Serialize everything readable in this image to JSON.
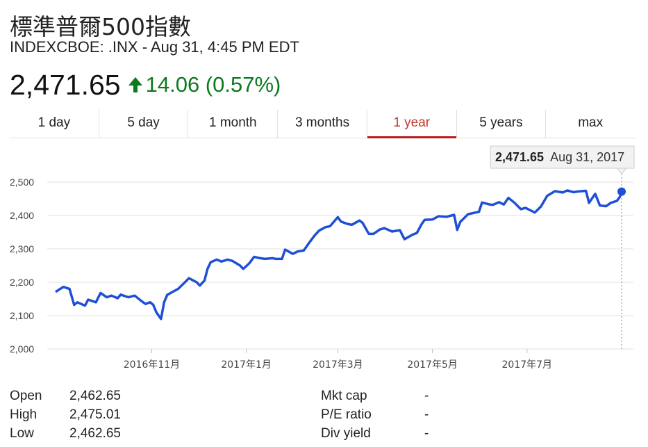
{
  "header": {
    "title": "標準普爾500指數",
    "subtitle": "INDEXCBOE: .INX - Aug 31, 4:45 PM EDT",
    "price": "2,471.65",
    "change": "14.06 (0.57%)"
  },
  "tabs": [
    {
      "label": "1 day",
      "active": false
    },
    {
      "label": "5 day",
      "active": false
    },
    {
      "label": "1 month",
      "active": false
    },
    {
      "label": "3 months",
      "active": false
    },
    {
      "label": "1 year",
      "active": true
    },
    {
      "label": "5 years",
      "active": false
    },
    {
      "label": "max",
      "active": false
    }
  ],
  "tooltip": {
    "value": "2,471.65",
    "date": "Aug 31, 2017"
  },
  "stats_left": [
    {
      "label": "Open",
      "value": "2,462.65"
    },
    {
      "label": "High",
      "value": "2,475.01"
    },
    {
      "label": "Low",
      "value": "2,462.65"
    }
  ],
  "stats_right": [
    {
      "label": "Mkt cap",
      "value": "-"
    },
    {
      "label": "P/E ratio",
      "value": "-"
    },
    {
      "label": "Div yield",
      "value": "-"
    }
  ],
  "colors": {
    "line": "#1f4fd6",
    "up": "#0b7a1f",
    "active_tab": "#b71c1c"
  },
  "chart_data": {
    "type": "line",
    "ylim": [
      2000,
      2500
    ],
    "yticks": [
      "2,000",
      "2,100",
      "2,200",
      "2,300",
      "2,400",
      "2,500"
    ],
    "ytick_values": [
      2000,
      2100,
      2200,
      2300,
      2400,
      2500
    ],
    "xlim": [
      "2016-08-31",
      "2017-08-31"
    ],
    "xticks": [
      {
        "label": "2016年11月",
        "date": "2016-11-01"
      },
      {
        "label": "2017年1月",
        "date": "2017-01-01"
      },
      {
        "label": "2017年3月",
        "date": "2017-03-01"
      },
      {
        "label": "2017年5月",
        "date": "2017-05-01"
      },
      {
        "label": "2017年7月",
        "date": "2017-07-01"
      }
    ],
    "grid": true,
    "series": [
      {
        "values": [
          [
            "2016-08-31",
            2171
          ],
          [
            "2016-09-05",
            2186
          ],
          [
            "2016-09-09",
            2180
          ],
          [
            "2016-09-12",
            2132
          ],
          [
            "2016-09-14",
            2140
          ],
          [
            "2016-09-19",
            2130
          ],
          [
            "2016-09-21",
            2148
          ],
          [
            "2016-09-26",
            2140
          ],
          [
            "2016-09-29",
            2168
          ],
          [
            "2016-10-03",
            2155
          ],
          [
            "2016-10-06",
            2160
          ],
          [
            "2016-10-10",
            2152
          ],
          [
            "2016-10-12",
            2163
          ],
          [
            "2016-10-17",
            2155
          ],
          [
            "2016-10-21",
            2160
          ],
          [
            "2016-10-25",
            2145
          ],
          [
            "2016-10-28",
            2135
          ],
          [
            "2016-10-31",
            2140
          ],
          [
            "2016-11-02",
            2132
          ],
          [
            "2016-11-04",
            2110
          ],
          [
            "2016-11-07",
            2090
          ],
          [
            "2016-11-09",
            2140
          ],
          [
            "2016-11-11",
            2162
          ],
          [
            "2016-11-14",
            2170
          ],
          [
            "2016-11-18",
            2180
          ],
          [
            "2016-11-22",
            2198
          ],
          [
            "2016-11-25",
            2212
          ],
          [
            "2016-11-30",
            2200
          ],
          [
            "2016-12-02",
            2190
          ],
          [
            "2016-12-05",
            2205
          ],
          [
            "2016-12-07",
            2240
          ],
          [
            "2016-12-09",
            2260
          ],
          [
            "2016-12-13",
            2268
          ],
          [
            "2016-12-16",
            2262
          ],
          [
            "2016-12-20",
            2268
          ],
          [
            "2016-12-23",
            2264
          ],
          [
            "2016-12-28",
            2250
          ],
          [
            "2016-12-30",
            2240
          ],
          [
            "2017-01-03",
            2257
          ],
          [
            "2017-01-06",
            2276
          ],
          [
            "2017-01-10",
            2272
          ],
          [
            "2017-01-13",
            2270
          ],
          [
            "2017-01-18",
            2272
          ],
          [
            "2017-01-20",
            2270
          ],
          [
            "2017-01-24",
            2270
          ],
          [
            "2017-01-26",
            2298
          ],
          [
            "2017-01-31",
            2285
          ],
          [
            "2017-02-03",
            2292
          ],
          [
            "2017-02-07",
            2295
          ],
          [
            "2017-02-10",
            2315
          ],
          [
            "2017-02-14",
            2340
          ],
          [
            "2017-02-17",
            2355
          ],
          [
            "2017-02-21",
            2365
          ],
          [
            "2017-02-24",
            2368
          ],
          [
            "2017-03-01",
            2395
          ],
          [
            "2017-03-03",
            2382
          ],
          [
            "2017-03-07",
            2375
          ],
          [
            "2017-03-10",
            2372
          ],
          [
            "2017-03-15",
            2385
          ],
          [
            "2017-03-17",
            2378
          ],
          [
            "2017-03-21",
            2345
          ],
          [
            "2017-03-24",
            2345
          ],
          [
            "2017-03-28",
            2358
          ],
          [
            "2017-03-31",
            2362
          ],
          [
            "2017-04-05",
            2352
          ],
          [
            "2017-04-10",
            2356
          ],
          [
            "2017-04-13",
            2329
          ],
          [
            "2017-04-18",
            2342
          ],
          [
            "2017-04-21",
            2348
          ],
          [
            "2017-04-24",
            2374
          ],
          [
            "2017-04-26",
            2387
          ],
          [
            "2017-05-01",
            2388
          ],
          [
            "2017-05-05",
            2398
          ],
          [
            "2017-05-10",
            2396
          ],
          [
            "2017-05-15",
            2402
          ],
          [
            "2017-05-17",
            2357
          ],
          [
            "2017-05-19",
            2381
          ],
          [
            "2017-05-24",
            2404
          ],
          [
            "2017-05-31",
            2411
          ],
          [
            "2017-06-02",
            2439
          ],
          [
            "2017-06-07",
            2433
          ],
          [
            "2017-06-09",
            2432
          ],
          [
            "2017-06-13",
            2440
          ],
          [
            "2017-06-16",
            2433
          ],
          [
            "2017-06-19",
            2453
          ],
          [
            "2017-06-23",
            2438
          ],
          [
            "2017-06-27",
            2419
          ],
          [
            "2017-06-30",
            2423
          ],
          [
            "2017-07-06",
            2409
          ],
          [
            "2017-07-10",
            2427
          ],
          [
            "2017-07-14",
            2459
          ],
          [
            "2017-07-19",
            2473
          ],
          [
            "2017-07-24",
            2469
          ],
          [
            "2017-07-27",
            2475
          ],
          [
            "2017-07-31",
            2470
          ],
          [
            "2017-08-03",
            2472
          ],
          [
            "2017-08-08",
            2474
          ],
          [
            "2017-08-10",
            2438
          ],
          [
            "2017-08-14",
            2465
          ],
          [
            "2017-08-17",
            2430
          ],
          [
            "2017-08-21",
            2428
          ],
          [
            "2017-08-24",
            2438
          ],
          [
            "2017-08-28",
            2444
          ],
          [
            "2017-08-30",
            2457
          ],
          [
            "2017-08-31",
            2471.65
          ]
        ]
      }
    ]
  }
}
